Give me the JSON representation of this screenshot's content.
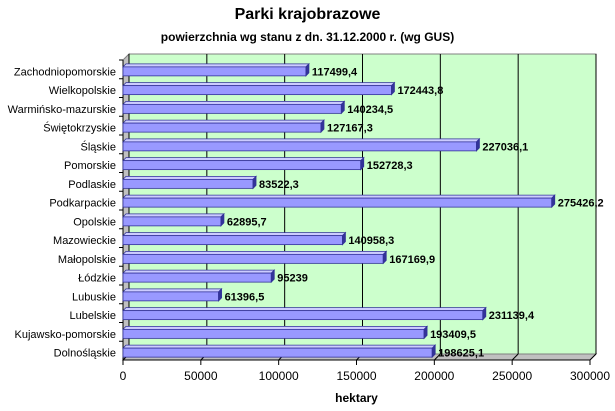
{
  "chart_data": {
    "type": "bar",
    "orientation": "horizontal",
    "title": "Parki krajobrazowe",
    "subtitle": "powierzchnia wg stanu z dn. 31.12.2000 r. (wg GUS)",
    "xlabel": "hektary",
    "ylabel": "",
    "xlim": [
      0,
      300000
    ],
    "xticks": [
      0,
      50000,
      100000,
      150000,
      200000,
      250000,
      300000
    ],
    "grid": true,
    "legend": "none",
    "categories": [
      "Zachodniopomorskie",
      "Wielkopolskie",
      "Warmińsko-mazurskie",
      "Świętokrzyskie",
      "Śląskie",
      "Pomorskie",
      "Podlaskie",
      "Podkarpackie",
      "Opolskie",
      "Mazowieckie",
      "Małopolskie",
      "Łódzkie",
      "Lubuskie",
      "Lubelskie",
      "Kujawsko-pomorskie",
      "Dolnośląskie"
    ],
    "values": [
      117499.4,
      172443.8,
      140234.5,
      127167.3,
      227036.1,
      152728.3,
      83522.3,
      275426.2,
      62895.7,
      140958.3,
      167169.9,
      95239,
      61396.5,
      231139.4,
      193409.5,
      198625.1
    ],
    "value_labels": [
      "117499,4",
      "172443,8",
      "140234,5",
      "127167,3",
      "227036,1",
      "152728,3",
      "83522,3",
      "275426,2",
      "62895,7",
      "140958,3",
      "167169,9",
      "95239",
      "61396,5",
      "231139,4",
      "193409,5",
      "198625,1"
    ],
    "colors": {
      "plot_background": "#ccffcc",
      "bar_fill": "#9999ff",
      "bar_side": "#333399",
      "bar_top": "#ccccff",
      "gridline": "#000000"
    }
  }
}
